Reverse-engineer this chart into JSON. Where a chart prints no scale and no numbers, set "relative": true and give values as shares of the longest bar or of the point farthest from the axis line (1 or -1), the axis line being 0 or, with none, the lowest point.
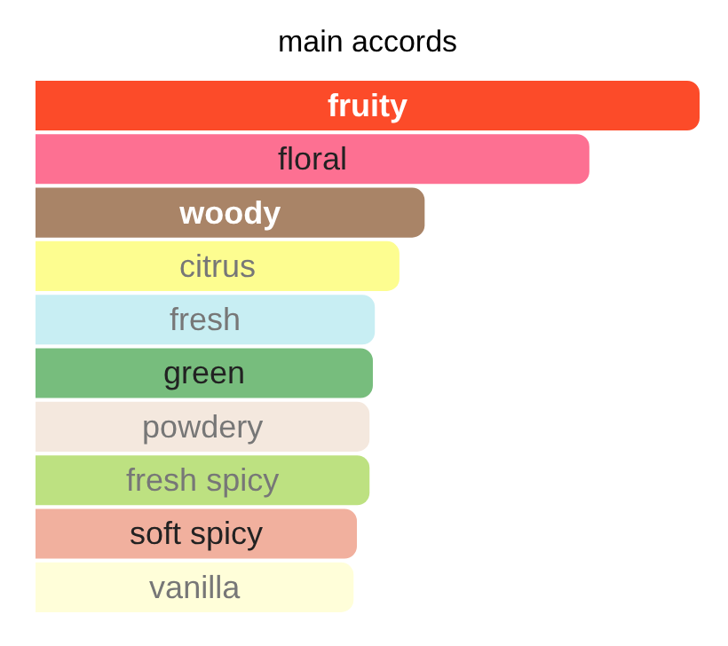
{
  "chart_data": {
    "type": "bar",
    "title": "main accords",
    "orientation": "horizontal",
    "relative": true,
    "categories": [
      "fruity",
      "floral",
      "woody",
      "citrus",
      "fresh",
      "green",
      "powdery",
      "fresh spicy",
      "soft spicy",
      "vanilla"
    ],
    "values": [
      1,
      0.834,
      0.586,
      0.548,
      0.511,
      0.508,
      0.503,
      0.503,
      0.484,
      0.479
    ],
    "colors": [
      "#fc4b29",
      "#fd7092",
      "#a98467",
      "#fdfd90",
      "#c8eef3",
      "#77bd7d",
      "#f4e8de",
      "#bde181",
      "#f1b09e",
      "#fffed9"
    ],
    "legend": false
  }
}
